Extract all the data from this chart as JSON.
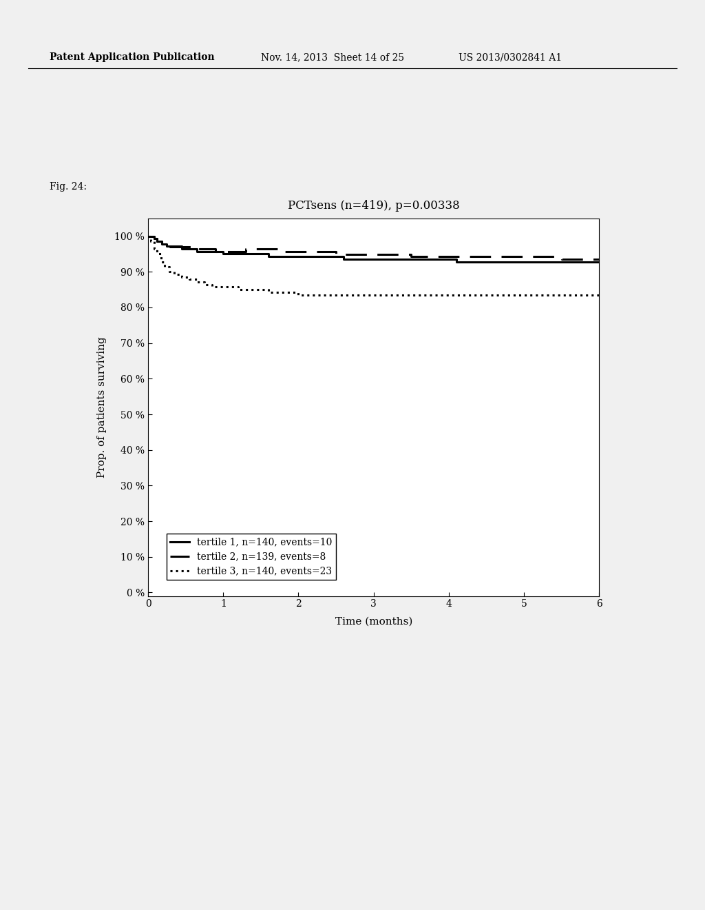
{
  "title": "PCTsens (n=419), p=0.00338",
  "xlabel": "Time (months)",
  "ylabel": "Prop. of patients surviving",
  "fig_label": "Fig. 24:",
  "header_left": "Patent Application Publication",
  "header_mid": "Nov. 14, 2013  Sheet 14 of 25",
  "header_right": "US 2013/0302841 A1",
  "xlim": [
    0,
    6
  ],
  "ylim": [
    -0.01,
    1.05
  ],
  "xticks": [
    0,
    1,
    2,
    3,
    4,
    5,
    6
  ],
  "yticks": [
    0.0,
    0.1,
    0.2,
    0.3,
    0.4,
    0.5,
    0.6,
    0.7,
    0.8,
    0.9,
    1.0
  ],
  "ytick_labels": [
    "0 %",
    "10 %",
    "20 %",
    "30 %",
    "40 %",
    "50 %",
    "60 %",
    "70 %",
    "80 %",
    "90 %",
    "100 %"
  ],
  "tertile1": {
    "x": [
      0,
      0.05,
      0.08,
      0.12,
      0.18,
      0.25,
      0.35,
      0.45,
      0.55,
      0.65,
      0.75,
      0.85,
      1.0,
      1.3,
      1.6,
      1.9,
      2.2,
      2.6,
      3.1,
      3.6,
      4.1,
      4.6,
      5.1,
      5.6,
      6.0
    ],
    "y": [
      1.0,
      1.0,
      0.9929,
      0.9857,
      0.9786,
      0.9714,
      0.9714,
      0.9643,
      0.9643,
      0.9571,
      0.9571,
      0.9571,
      0.95,
      0.95,
      0.9429,
      0.9429,
      0.9429,
      0.9357,
      0.9357,
      0.9357,
      0.9286,
      0.9286,
      0.9286,
      0.9286,
      0.9286
    ],
    "label": "tertile 1, n=140, events=10",
    "linestyle": "solid",
    "linewidth": 2.2,
    "color": "#000000"
  },
  "tertile2": {
    "x": [
      0,
      0.05,
      0.08,
      0.12,
      0.18,
      0.25,
      0.35,
      0.55,
      0.65,
      0.75,
      0.9,
      1.05,
      1.3,
      1.55,
      1.8,
      2.1,
      2.5,
      3.0,
      3.5,
      4.0,
      4.5,
      5.0,
      5.5,
      6.0
    ],
    "y": [
      1.0,
      1.0,
      0.9928,
      0.9856,
      0.9784,
      0.9712,
      0.9712,
      0.9712,
      0.964,
      0.964,
      0.9568,
      0.9568,
      0.964,
      0.964,
      0.9568,
      0.9568,
      0.9496,
      0.9496,
      0.9424,
      0.9424,
      0.9424,
      0.9424,
      0.9352,
      0.9352
    ],
    "label": "tertile 2, n=139, events=8",
    "linestyle": "dashed",
    "linewidth": 2.2,
    "color": "#000000",
    "dashes": [
      10,
      5
    ]
  },
  "tertile3": {
    "x": [
      0,
      0.04,
      0.08,
      0.12,
      0.17,
      0.22,
      0.28,
      0.35,
      0.45,
      0.55,
      0.65,
      0.75,
      0.85,
      1.0,
      1.2,
      1.6,
      2.0,
      2.5,
      3.0,
      3.5,
      4.0,
      4.5,
      5.0,
      5.5,
      6.0
    ],
    "y": [
      1.0,
      0.9857,
      0.9643,
      0.95,
      0.9286,
      0.9143,
      0.9,
      0.8929,
      0.8857,
      0.8786,
      0.8714,
      0.8643,
      0.8571,
      0.8571,
      0.85,
      0.8429,
      0.8357,
      0.8357,
      0.8357,
      0.8357,
      0.8357,
      0.8357,
      0.8357,
      0.8357,
      0.8357
    ],
    "label": "tertile 3, n=140, events=23",
    "linestyle": "dotted",
    "linewidth": 2.2,
    "color": "#000000",
    "dotsize": 3
  },
  "background_color": "#f0f0f0",
  "plot_bg_color": "#ffffff",
  "title_fontsize": 12,
  "label_fontsize": 11,
  "tick_fontsize": 10,
  "legend_fontsize": 10,
  "header_fontsize": 10,
  "fig_label_fontsize": 10
}
